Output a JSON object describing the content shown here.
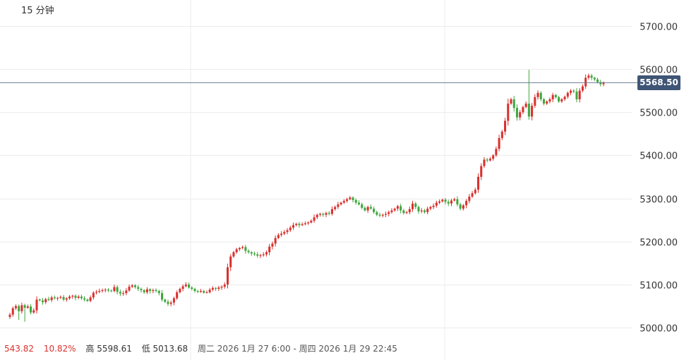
{
  "header": {
    "interval": "15 分钟"
  },
  "footer": {
    "change": "543.82",
    "change_pct": "10.82%",
    "high": "高 5598.61",
    "low": "低 5013.68",
    "range": "周二 2026 1月 27 6:00 - 周四 2026 1月 29 22:45"
  },
  "colors": {
    "up": "#d9312e",
    "down": "#3fa73f",
    "price_tag": "#3f5575",
    "grid": "#ececec"
  },
  "chart_data": {
    "type": "candlestick",
    "interval": "15 分钟",
    "ylim": [
      4975,
      5735
    ],
    "yticks": [
      "5000.00",
      "5100.00",
      "5200.00",
      "5300.00",
      "5400.00",
      "5500.00",
      "5600.00",
      "5700.00"
    ],
    "last_price": "5568.50",
    "high": 5598.61,
    "low": 5013.68,
    "start_open": 5024.7,
    "end_close": 5568.5,
    "series": [
      {
        "closes": [
          5030,
          5045,
          5050,
          5038,
          5052,
          5046,
          5049,
          5035,
          5040,
          5065,
          5063,
          5059,
          5066,
          5064,
          5070,
          5068,
          5069,
          5071,
          5065,
          5068,
          5072,
          5074,
          5069,
          5072,
          5068,
          5065,
          5062,
          5070,
          5081,
          5083,
          5085,
          5087,
          5088,
          5086,
          5085,
          5094,
          5083,
          5079,
          5080,
          5086,
          5095,
          5098,
          5094,
          5090,
          5087,
          5082,
          5089,
          5085,
          5087,
          5085,
          5080,
          5065,
          5060,
          5055,
          5058,
          5068,
          5082,
          5090,
          5096,
          5100,
          5093,
          5090,
          5085,
          5083,
          5085,
          5081,
          5082,
          5088,
          5092,
          5090,
          5093,
          5095,
          5100,
          5140,
          5165,
          5175,
          5182,
          5185,
          5187,
          5178,
          5175,
          5172,
          5170,
          5167,
          5168,
          5170,
          5175,
          5188,
          5195,
          5208,
          5215,
          5218,
          5222,
          5226,
          5232,
          5238,
          5241,
          5238,
          5240,
          5242,
          5244,
          5248,
          5256,
          5262,
          5264,
          5262,
          5266,
          5264,
          5275,
          5280,
          5286,
          5290,
          5294,
          5298,
          5302,
          5296,
          5290,
          5286,
          5278,
          5272,
          5280,
          5276,
          5268,
          5262,
          5260,
          5262,
          5264,
          5268,
          5272,
          5276,
          5282,
          5272,
          5266,
          5268,
          5275,
          5288,
          5280,
          5270,
          5272,
          5268,
          5276,
          5280,
          5283,
          5290,
          5293,
          5297,
          5292,
          5288,
          5295,
          5298,
          5286,
          5276,
          5284,
          5294,
          5304,
          5312,
          5320,
          5350,
          5375,
          5390,
          5388,
          5392,
          5400,
          5415,
          5440,
          5455,
          5480,
          5520,
          5530,
          5510,
          5488,
          5500,
          5512,
          5520,
          5490,
          5515,
          5535,
          5545,
          5530,
          5520,
          5525,
          5530,
          5540,
          5535,
          5525,
          5530,
          5536,
          5545,
          5550,
          5548,
          5530,
          5550,
          5560,
          5580,
          5585,
          5580,
          5576,
          5570,
          5565,
          5568.5
        ]
      }
    ]
  }
}
